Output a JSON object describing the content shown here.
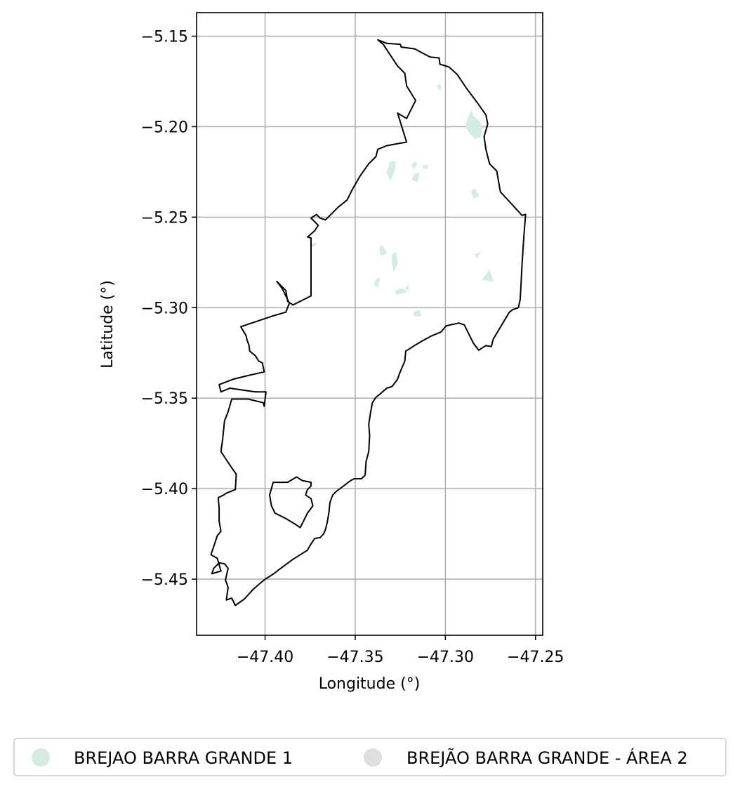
{
  "map": {
    "xlabel": "Longitude (°)",
    "ylabel": "Latitude (°)",
    "xlim": [
      -47.438,
      -47.246
    ],
    "ylim": [
      -5.481,
      -5.137
    ],
    "grid": true,
    "x_ticks": [
      {
        "value": -47.4,
        "label": "−47.40"
      },
      {
        "value": -47.35,
        "label": "−47.35"
      },
      {
        "value": -47.3,
        "label": "−47.30"
      },
      {
        "value": -47.25,
        "label": "−47.25"
      }
    ],
    "y_ticks": [
      {
        "value": -5.15,
        "label": "−5.15"
      },
      {
        "value": -5.2,
        "label": "−5.20"
      },
      {
        "value": -5.25,
        "label": "−5.25"
      },
      {
        "value": -5.3,
        "label": "−5.30"
      },
      {
        "value": -5.35,
        "label": "−5.35"
      },
      {
        "value": -5.4,
        "label": "−5.40"
      },
      {
        "value": -5.45,
        "label": "−5.45"
      }
    ],
    "legend_position": "bottom",
    "legend": [
      {
        "label": "BREJAO BARRA GRANDE 1",
        "color": "#d4ede0"
      },
      {
        "label": "BREJÃO BARRA GRANDE - ÁREA 2",
        "color": "#dedede"
      }
    ],
    "boundary_color": "#000000",
    "patch_color": "#d4ede0",
    "boundary": [
      [
        -47.3375,
        -5.152
      ],
      [
        -47.3325,
        -5.154
      ],
      [
        -47.325,
        -5.1545
      ],
      [
        -47.3245,
        -5.156
      ],
      [
        -47.317,
        -5.157
      ],
      [
        -47.3085,
        -5.1615
      ],
      [
        -47.3035,
        -5.162
      ],
      [
        -47.303,
        -5.1655
      ],
      [
        -47.298,
        -5.167
      ],
      [
        -47.2935,
        -5.171
      ],
      [
        -47.2885,
        -5.1785
      ],
      [
        -47.2825,
        -5.1865
      ],
      [
        -47.2775,
        -5.1935
      ],
      [
        -47.2765,
        -5.1985
      ],
      [
        -47.2785,
        -5.2055
      ],
      [
        -47.2775,
        -5.2125
      ],
      [
        -47.2755,
        -5.2205
      ],
      [
        -47.2735,
        -5.2225
      ],
      [
        -47.2715,
        -5.2245
      ],
      [
        -47.2695,
        -5.236
      ],
      [
        -47.2635,
        -5.2425
      ],
      [
        -47.2575,
        -5.249
      ],
      [
        -47.2555,
        -5.2485
      ],
      [
        -47.2565,
        -5.2615
      ],
      [
        -47.2575,
        -5.2765
      ],
      [
        -47.258,
        -5.2865
      ],
      [
        -47.2585,
        -5.2955
      ],
      [
        -47.2595,
        -5.3
      ],
      [
        -47.2625,
        -5.301
      ],
      [
        -47.2645,
        -5.3025
      ],
      [
        -47.2735,
        -5.3175
      ],
      [
        -47.2745,
        -5.3215
      ],
      [
        -47.2775,
        -5.321
      ],
      [
        -47.28,
        -5.3225
      ],
      [
        -47.2815,
        -5.3235
      ],
      [
        -47.2845,
        -5.3195
      ],
      [
        -47.2875,
        -5.3135
      ],
      [
        -47.2895,
        -5.3095
      ],
      [
        -47.2925,
        -5.3085
      ],
      [
        -47.2995,
        -5.31
      ],
      [
        -47.3025,
        -5.3135
      ],
      [
        -47.3075,
        -5.3155
      ],
      [
        -47.313,
        -5.3185
      ],
      [
        -47.3165,
        -5.3205
      ],
      [
        -47.3195,
        -5.3225
      ],
      [
        -47.322,
        -5.324
      ],
      [
        -47.3225,
        -5.3295
      ],
      [
        -47.3255,
        -5.3365
      ],
      [
        -47.3265,
        -5.3395
      ],
      [
        -47.3295,
        -5.3435
      ],
      [
        -47.3325,
        -5.3445
      ],
      [
        -47.336,
        -5.3475
      ],
      [
        -47.3385,
        -5.3495
      ],
      [
        -47.3405,
        -5.3525
      ],
      [
        -47.3415,
        -5.358
      ],
      [
        -47.3425,
        -5.3645
      ],
      [
        -47.342,
        -5.3705
      ],
      [
        -47.3425,
        -5.3795
      ],
      [
        -47.344,
        -5.385
      ],
      [
        -47.3445,
        -5.3925
      ],
      [
        -47.3465,
        -5.3945
      ],
      [
        -47.3505,
        -5.3945
      ],
      [
        -47.3525,
        -5.3955
      ],
      [
        -47.3565,
        -5.3985
      ],
      [
        -47.3605,
        -5.4015
      ],
      [
        -47.3625,
        -5.4035
      ],
      [
        -47.364,
        -5.4075
      ],
      [
        -47.3645,
        -5.4125
      ],
      [
        -47.3655,
        -5.4185
      ],
      [
        -47.3665,
        -5.4225
      ],
      [
        -47.3675,
        -5.425
      ],
      [
        -47.3695,
        -5.427
      ],
      [
        -47.3725,
        -5.4275
      ],
      [
        -47.3745,
        -5.4305
      ],
      [
        -47.3765,
        -5.434
      ],
      [
        -47.3845,
        -5.439
      ],
      [
        -47.392,
        -5.4445
      ],
      [
        -47.3945,
        -5.4465
      ],
      [
        -47.3975,
        -5.4485
      ],
      [
        -47.4,
        -5.45
      ],
      [
        -47.403,
        -5.4525
      ],
      [
        -47.4065,
        -5.4555
      ],
      [
        -47.4115,
        -5.461
      ],
      [
        -47.4165,
        -5.4645
      ],
      [
        -47.4185,
        -5.4605
      ],
      [
        -47.4215,
        -5.4615
      ],
      [
        -47.4205,
        -5.4545
      ],
      [
        -47.422,
        -5.4505
      ],
      [
        -47.4205,
        -5.444
      ],
      [
        -47.4225,
        -5.4415
      ],
      [
        -47.4255,
        -5.441
      ],
      [
        -47.4285,
        -5.444
      ],
      [
        -47.4295,
        -5.447
      ],
      [
        -47.4245,
        -5.4455
      ],
      [
        -47.4265,
        -5.4385
      ],
      [
        -47.43,
        -5.4365
      ],
      [
        -47.4265,
        -5.426
      ],
      [
        -47.4245,
        -5.4235
      ],
      [
        -47.4255,
        -5.418
      ],
      [
        -47.4255,
        -5.4105
      ],
      [
        -47.426,
        -5.405
      ],
      [
        -47.423,
        -5.4035
      ],
      [
        -47.4215,
        -5.4025
      ],
      [
        -47.4165,
        -5.4005
      ],
      [
        -47.416,
        -5.392
      ],
      [
        -47.4185,
        -5.3885
      ],
      [
        -47.4225,
        -5.3825
      ],
      [
        -47.4245,
        -5.3795
      ],
      [
        -47.4235,
        -5.3725
      ],
      [
        -47.4225,
        -5.3625
      ],
      [
        -47.4205,
        -5.3575
      ],
      [
        -47.4185,
        -5.3505
      ],
      [
        -47.4095,
        -5.3505
      ],
      [
        -47.401,
        -5.3525
      ],
      [
        -47.4005,
        -5.3545
      ],
      [
        -47.3995,
        -5.3465
      ],
      [
        -47.4055,
        -5.3465
      ],
      [
        -47.4195,
        -5.3445
      ],
      [
        -47.4245,
        -5.3465
      ],
      [
        -47.4255,
        -5.3425
      ],
      [
        -47.4175,
        -5.3395
      ],
      [
        -47.4095,
        -5.3375
      ],
      [
        -47.4005,
        -5.3355
      ],
      [
        -47.4015,
        -5.3305
      ],
      [
        -47.4035,
        -5.3295
      ],
      [
        -47.4055,
        -5.3265
      ],
      [
        -47.4085,
        -5.324
      ],
      [
        -47.409,
        -5.3205
      ],
      [
        -47.41,
        -5.318
      ],
      [
        -47.4105,
        -5.3155
      ],
      [
        -47.4135,
        -5.3105
      ],
      [
        -47.3955,
        -5.3045
      ],
      [
        -47.3885,
        -5.3025
      ],
      [
        -47.3865,
        -5.2975
      ],
      [
        -47.3905,
        -5.2895
      ],
      [
        -47.3935,
        -5.2855
      ],
      [
        -47.3885,
        -5.2905
      ],
      [
        -47.3875,
        -5.2965
      ],
      [
        -47.3845,
        -5.2985
      ],
      [
        -47.3745,
        -5.2935
      ],
      [
        -47.3745,
        -5.2615
      ],
      [
        -47.3765,
        -5.261
      ],
      [
        -47.3725,
        -5.2575
      ],
      [
        -47.3705,
        -5.2545
      ],
      [
        -47.3745,
        -5.2505
      ],
      [
        -47.3715,
        -5.2485
      ],
      [
        -47.3695,
        -5.2505
      ],
      [
        -47.3665,
        -5.2515
      ],
      [
        -47.3625,
        -5.2475
      ],
      [
        -47.3595,
        -5.2445
      ],
      [
        -47.3545,
        -5.2405
      ],
      [
        -47.3515,
        -5.2345
      ],
      [
        -47.3475,
        -5.2275
      ],
      [
        -47.3425,
        -5.2205
      ],
      [
        -47.3385,
        -5.2165
      ],
      [
        -47.3375,
        -5.2125
      ],
      [
        -47.3325,
        -5.2105
      ],
      [
        -47.3215,
        -5.2085
      ],
      [
        -47.3265,
        -5.1925
      ],
      [
        -47.3215,
        -5.1955
      ],
      [
        -47.3165,
        -5.1855
      ],
      [
        -47.3215,
        -5.1775
      ],
      [
        -47.3225,
        -5.1705
      ],
      [
        -47.3265,
        -5.1665
      ],
      [
        -47.3305,
        -5.1605
      ],
      [
        -47.3345,
        -5.1545
      ],
      [
        -47.3375,
        -5.152
      ]
    ],
    "inner_boundary": [
      [
        -47.3955,
        -5.3965
      ],
      [
        -47.3895,
        -5.3965
      ],
      [
        -47.3875,
        -5.3965
      ],
      [
        -47.3825,
        -5.3935
      ],
      [
        -47.3795,
        -5.3955
      ],
      [
        -47.3745,
        -5.3965
      ],
      [
        -47.3745,
        -5.3985
      ],
      [
        -47.3765,
        -5.4005
      ],
      [
        -47.3775,
        -5.4035
      ],
      [
        -47.3745,
        -5.4055
      ],
      [
        -47.3735,
        -5.4095
      ],
      [
        -47.3765,
        -5.4135
      ],
      [
        -47.3785,
        -5.4175
      ],
      [
        -47.3805,
        -5.4215
      ],
      [
        -47.3835,
        -5.4195
      ],
      [
        -47.3885,
        -5.4165
      ],
      [
        -47.3945,
        -5.4135
      ],
      [
        -47.3965,
        -5.4095
      ],
      [
        -47.3975,
        -5.4035
      ],
      [
        -47.3955,
        -5.3965
      ]
    ],
    "patches": [
      [
        [
          -47.3025,
          -5.1775
        ],
        [
          -47.3035,
          -5.1765
        ],
        [
          -47.3045,
          -5.1785
        ],
        [
          -47.3025,
          -5.1795
        ]
      ],
      [
        [
          -47.2875,
          -5.1955
        ],
        [
          -47.2855,
          -5.1915
        ],
        [
          -47.2845,
          -5.1945
        ],
        [
          -47.2815,
          -5.1965
        ],
        [
          -47.2795,
          -5.2005
        ],
        [
          -47.2805,
          -5.2055
        ],
        [
          -47.2835,
          -5.2065
        ],
        [
          -47.2865,
          -5.2035
        ],
        [
          -47.2885,
          -5.2005
        ]
      ],
      [
        [
          -47.3305,
          -5.2195
        ],
        [
          -47.3275,
          -5.2195
        ],
        [
          -47.3285,
          -5.2255
        ],
        [
          -47.3305,
          -5.2295
        ],
        [
          -47.3325,
          -5.2255
        ]
      ],
      [
        [
          -47.3175,
          -5.2195
        ],
        [
          -47.3155,
          -5.2205
        ],
        [
          -47.3175,
          -5.2235
        ],
        [
          -47.3185,
          -5.2215
        ]
      ],
      [
        [
          -47.3125,
          -5.2215
        ],
        [
          -47.3095,
          -5.2215
        ],
        [
          -47.3105,
          -5.2235
        ],
        [
          -47.3125,
          -5.2225
        ]
      ],
      [
        [
          -47.3175,
          -5.2265
        ],
        [
          -47.3145,
          -5.2255
        ],
        [
          -47.3155,
          -5.2305
        ],
        [
          -47.3185,
          -5.2295
        ]
      ],
      [
        [
          -47.2855,
          -5.2355
        ],
        [
          -47.2835,
          -5.2345
        ],
        [
          -47.2815,
          -5.2385
        ],
        [
          -47.2845,
          -5.2395
        ]
      ],
      [
        [
          -47.3365,
          -5.2675
        ],
        [
          -47.3355,
          -5.2655
        ],
        [
          -47.3325,
          -5.2695
        ],
        [
          -47.3355,
          -5.2715
        ]
      ],
      [
        [
          -47.3295,
          -5.2705
        ],
        [
          -47.3275,
          -5.2695
        ],
        [
          -47.3265,
          -5.2755
        ],
        [
          -47.3285,
          -5.2795
        ],
        [
          -47.3295,
          -5.2755
        ]
      ],
      [
        [
          -47.3385,
          -5.2845
        ],
        [
          -47.3365,
          -5.2835
        ],
        [
          -47.3375,
          -5.2885
        ],
        [
          -47.3395,
          -5.2875
        ]
      ],
      [
        [
          -47.3275,
          -5.2905
        ],
        [
          -47.3235,
          -5.2895
        ],
        [
          -47.3215,
          -5.2915
        ],
        [
          -47.3275,
          -5.2925
        ]
      ],
      [
        [
          -47.2795,
          -5.2845
        ],
        [
          -47.2755,
          -5.2795
        ],
        [
          -47.2735,
          -5.2855
        ]
      ],
      [
        [
          -47.2835,
          -5.2705
        ],
        [
          -47.2805,
          -5.2695
        ],
        [
          -47.2825,
          -5.2725
        ]
      ],
      [
        [
          -47.3175,
          -5.3025
        ],
        [
          -47.3145,
          -5.3015
        ],
        [
          -47.3135,
          -5.3045
        ],
        [
          -47.3175,
          -5.3045
        ]
      ],
      [
        [
          -47.3225,
          -5.2895
        ],
        [
          -47.3205,
          -5.2875
        ],
        [
          -47.3205,
          -5.2905
        ]
      ],
      [
        [
          -47.3745,
          -5.2645
        ],
        [
          -47.3715,
          -5.2645
        ],
        [
          -47.3735,
          -5.2665
        ]
      ]
    ]
  }
}
